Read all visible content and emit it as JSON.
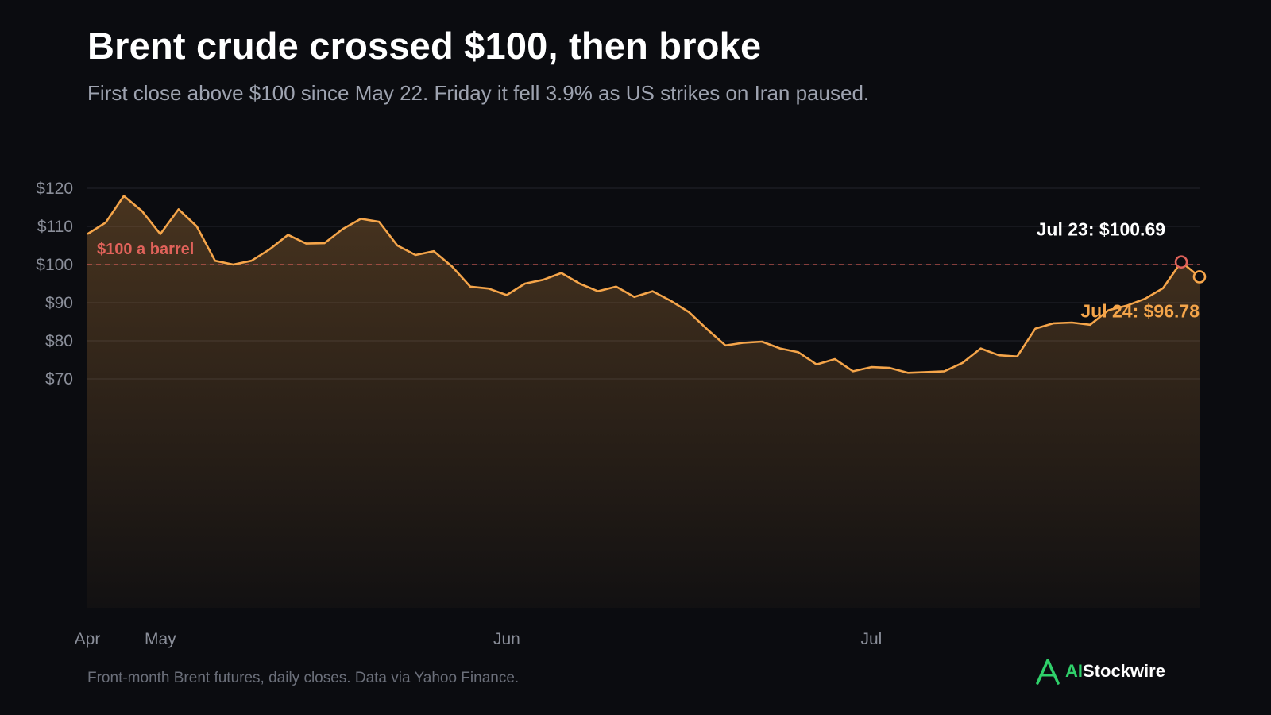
{
  "header": {
    "title": "Brent crude crossed $100, then broke",
    "subtitle": "First close above $100 since May 22. Friday it fell 3.9% as US strikes on Iran paused."
  },
  "footer": {
    "source": "Front-month Brent futures, daily closes. Data via Yahoo Finance.",
    "brand_accent": "AI",
    "brand_rest": "Stockwire",
    "brand_icon": "a-logo-icon"
  },
  "colors": {
    "background": "#0b0c10",
    "line": "#f5a54a",
    "threshold": "#e0625a",
    "grid": "#23252c",
    "axis_text": "#8a8e99",
    "brand_green": "#2fd06a"
  },
  "chart_data": {
    "type": "area",
    "xlabel": "",
    "ylabel": "",
    "ylim": [
      65,
      120
    ],
    "y_ticks": [
      {
        "value": 120,
        "label": "$120"
      },
      {
        "value": 110,
        "label": "$110"
      },
      {
        "value": 100,
        "label": "$100"
      },
      {
        "value": 90,
        "label": "$90"
      },
      {
        "value": 80,
        "label": "$80"
      },
      {
        "value": 70,
        "label": "$70"
      }
    ],
    "x_ticks": [
      {
        "index": 0,
        "label": "Apr"
      },
      {
        "index": 4,
        "label": "May"
      },
      {
        "index": 23,
        "label": "Jun"
      },
      {
        "index": 43,
        "label": "Jul"
      }
    ],
    "grid": true,
    "legend": "none",
    "series": [
      {
        "values": [
          108,
          111,
          118,
          114,
          108,
          114.5,
          110,
          101,
          100,
          101,
          104,
          107.8,
          105.5,
          105.6,
          109.3,
          112,
          111.2,
          105,
          102.5,
          103.5,
          99.5,
          94.2,
          93.7,
          92,
          95,
          96,
          97.8,
          95,
          93,
          94.2,
          91.5,
          93,
          90.5,
          87.5,
          83,
          78.8,
          79.5,
          79.8,
          78,
          77,
          73.8,
          75.2,
          72,
          73.1,
          72.9,
          71.6,
          71.8,
          72,
          74.2,
          78,
          76.2,
          75.9,
          83.2,
          84.6,
          84.8,
          84.2,
          88,
          89.2,
          91,
          93.8,
          100.69,
          96.78
        ]
      }
    ],
    "reference_line": {
      "value": 100,
      "label": "$100 a barrel"
    },
    "annotations": [
      {
        "index": 60,
        "value": 100.69,
        "label": "Jul 23: $100.69"
      },
      {
        "index": 61,
        "value": 96.78,
        "label": "Jul 24: $96.78"
      }
    ]
  }
}
